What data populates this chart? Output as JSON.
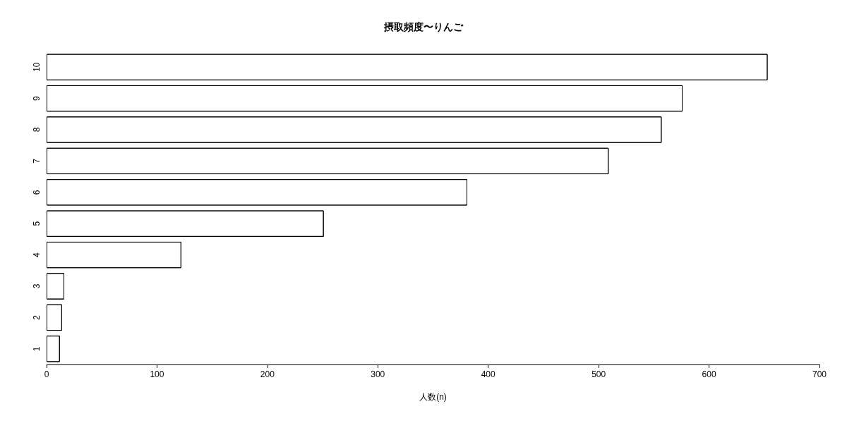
{
  "chart_data": {
    "type": "bar",
    "orientation": "horizontal",
    "title": "摂取頻度〜りんご",
    "xlabel": "人数(n)",
    "categories": [
      "10",
      "9",
      "8",
      "7",
      "6",
      "5",
      "4",
      "3",
      "2",
      "1"
    ],
    "values": [
      653,
      576,
      557,
      509,
      381,
      251,
      122,
      16,
      14,
      12
    ],
    "color": "#ffffff",
    "xlim": [
      0,
      700
    ],
    "xticks": [
      0,
      100,
      200,
      300,
      400,
      500,
      600,
      700
    ],
    "grid": false
  }
}
